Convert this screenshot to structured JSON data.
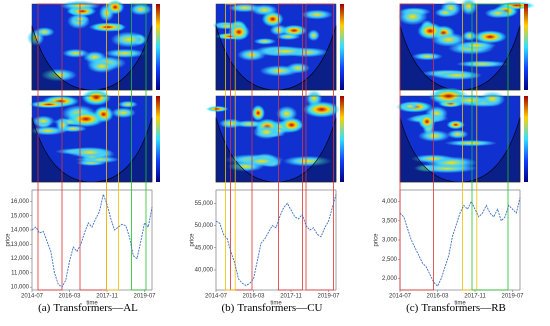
{
  "chart_data": [
    {
      "type": "line",
      "label": "(a)",
      "title": "Transformers—AL",
      "xlabel": "time",
      "ylabel": "price",
      "color": "#3a6fc2",
      "values": [
        14000,
        14200,
        13800,
        13900,
        13200,
        12500,
        11000,
        10200,
        10000,
        10500,
        11800,
        12800,
        12500,
        13000,
        13800,
        14500,
        14200,
        14800,
        15300,
        16500,
        15800,
        14800,
        14000,
        14200,
        14400,
        14300,
        13500,
        12200,
        12000,
        13200,
        14500,
        14200,
        15600
      ],
      "xlim": [
        0,
        32
      ],
      "xticks": [
        {
          "value": 0,
          "label": "2014-07"
        },
        {
          "value": 10,
          "label": "2016-03"
        },
        {
          "value": 20,
          "label": "2017-11"
        },
        {
          "value": 30,
          "label": "2019-07"
        }
      ],
      "ylim": [
        9800,
        16800
      ],
      "yticks": [
        {
          "value": 10000,
          "label": "10,000"
        },
        {
          "value": 11000,
          "label": "11,000"
        },
        {
          "value": 12000,
          "label": "12,000"
        },
        {
          "value": 13000,
          "label": "13,000"
        },
        {
          "value": 14000,
          "label": "14,000"
        },
        {
          "value": 15000,
          "label": "15,000"
        },
        {
          "value": 16000,
          "label": "16,000"
        }
      ]
    },
    {
      "type": "line",
      "label": "(b)",
      "title": "Transformers—CU",
      "xlabel": "time",
      "ylabel": "price",
      "color": "#3a6fc2",
      "values": [
        51000,
        50500,
        48000,
        47000,
        44000,
        41500,
        38000,
        37000,
        36500,
        37000,
        38000,
        42000,
        46000,
        47000,
        48500,
        50000,
        49500,
        52000,
        54000,
        55000,
        53500,
        52000,
        51500,
        52500,
        50000,
        49000,
        49500,
        48000,
        47500,
        49500,
        51000,
        54000,
        57000
      ],
      "xlim": [
        0,
        32
      ],
      "xticks": [
        {
          "value": 0,
          "label": "2014-07"
        },
        {
          "value": 10,
          "label": "2016-03"
        },
        {
          "value": 20,
          "label": "2017-11"
        },
        {
          "value": 30,
          "label": "2019-07"
        }
      ],
      "ylim": [
        35500,
        58000
      ],
      "yticks": [
        {
          "value": 40000,
          "label": "40,000"
        },
        {
          "value": 45000,
          "label": "45,000"
        },
        {
          "value": 50000,
          "label": "50,000"
        },
        {
          "value": 55000,
          "label": "55,000"
        }
      ]
    },
    {
      "type": "line",
      "label": "(c)",
      "title": "Transformers—RB",
      "xlabel": "time",
      "ylabel": "price",
      "color": "#3a6fc2",
      "values": [
        3700,
        3600,
        3300,
        3000,
        2800,
        2600,
        2400,
        2300,
        2100,
        1900,
        1800,
        2000,
        2300,
        2600,
        3100,
        3400,
        3700,
        3900,
        3800,
        4000,
        3800,
        3600,
        3700,
        3900,
        3700,
        3600,
        3800,
        3500,
        3600,
        3900,
        3800,
        3700,
        4100
      ],
      "xlim": [
        0,
        32
      ],
      "xticks": [
        {
          "value": 0,
          "label": "2014-07"
        },
        {
          "value": 10,
          "label": "2016-03"
        },
        {
          "value": 20,
          "label": "2017-11"
        },
        {
          "value": 30,
          "label": "2019-07"
        }
      ],
      "ylim": [
        1700,
        4300
      ],
      "yticks": [
        {
          "value": 2000,
          "label": "2,000"
        },
        {
          "value": 2500,
          "label": "2,500"
        },
        {
          "value": 3000,
          "label": "3,000"
        },
        {
          "value": 3500,
          "label": "3,500"
        },
        {
          "value": 4000,
          "label": "4,000"
        }
      ]
    }
  ]
}
